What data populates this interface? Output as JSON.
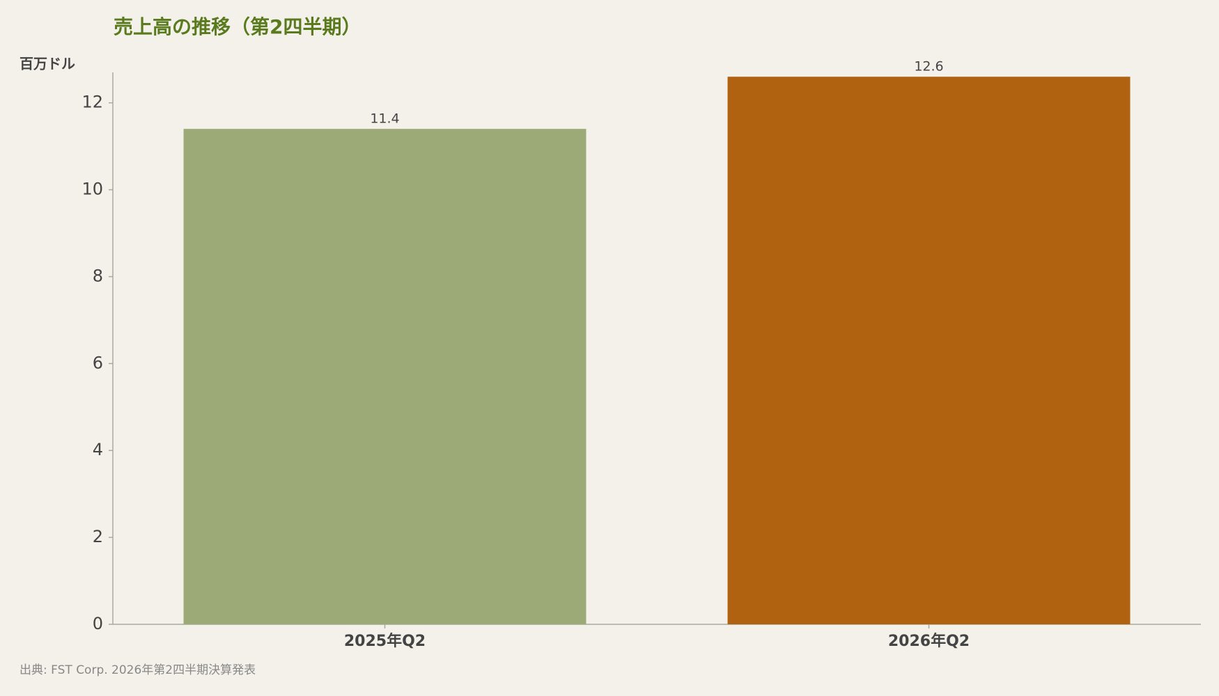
{
  "chart_data": {
    "type": "bar",
    "title": "売上高の推移（第2四半期）",
    "y_label": "百万ドル",
    "categories": [
      "2025年Q2",
      "2026年Q2"
    ],
    "values": [
      11.4,
      12.6
    ],
    "colors": [
      "#9caa78",
      "#b06210"
    ],
    "ylim": [
      0,
      12.7
    ],
    "yticks": [
      0,
      2,
      4,
      6,
      8,
      10,
      12
    ],
    "grid": false,
    "value_labels_shown": true,
    "source": "出典: FST Corp. 2026年第2四半期決算発表"
  }
}
